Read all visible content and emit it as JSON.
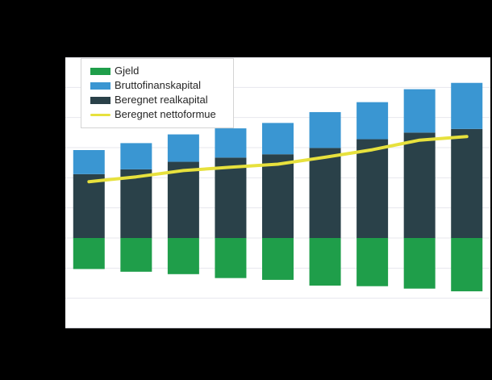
{
  "page": {
    "background": "#000000",
    "plot_background": "#ffffff",
    "title_visible": false,
    "axis_tick_labels_visible": false
  },
  "colors": {
    "gridline": "#e7e7ed",
    "axis_line": "#cfd0d6",
    "legend_border": "#d4d4d4",
    "legend_text": "#262626"
  },
  "legend": {
    "position": "top-left",
    "items": [
      {
        "label": "Gjeld",
        "color": "#1f9e4a",
        "marker": "rect"
      },
      {
        "label": "Bruttofinanskapital",
        "color": "#3a96d2",
        "marker": "rect"
      },
      {
        "label": "Beregnet realkapital",
        "color": "#2a4149",
        "marker": "rect"
      },
      {
        "label": "Beregnet nettoformue",
        "color": "#e7e13d",
        "marker": "line"
      }
    ]
  },
  "chart_data": {
    "type": "bar",
    "stacked": true,
    "orientation": "vertical",
    "title": "",
    "xlabel": "",
    "ylabel": "",
    "categories": [
      "",
      "",
      "",
      "",
      "",
      "",
      "",
      "",
      ""
    ],
    "note": "Axis tick labels are not visible in the image (rendered black on black); values below are in relative units where 1 unit = 1 horizontal gridline interval, zero line at the gridline where green meets dark teal.",
    "ylim": [
      -3,
      6
    ],
    "gridline_step": 1,
    "grid": true,
    "series": [
      {
        "name": "Gjeld",
        "color": "#1f9e4a",
        "direction": "below-zero",
        "values": [
          -1.03,
          -1.12,
          -1.2,
          -1.33,
          -1.39,
          -1.58,
          -1.6,
          -1.68,
          -1.77
        ]
      },
      {
        "name": "Beregnet realkapital",
        "color": "#2a4149",
        "direction": "above-zero",
        "values": [
          2.12,
          2.28,
          2.53,
          2.67,
          2.78,
          2.99,
          3.28,
          3.5,
          3.62
        ]
      },
      {
        "name": "Bruttofinanskapital",
        "color": "#3a96d2",
        "direction": "stacked-on-realkapital",
        "values": [
          0.8,
          0.87,
          0.91,
          0.97,
          1.04,
          1.19,
          1.23,
          1.44,
          1.53
        ]
      }
    ],
    "line_series": {
      "name": "Beregnet nettoformue",
      "color": "#e7e13d",
      "stroke_width": 4,
      "values": [
        1.87,
        2.03,
        2.24,
        2.35,
        2.45,
        2.68,
        2.93,
        3.25,
        3.37
      ]
    },
    "legend_position": "top-left-inside-plot"
  }
}
